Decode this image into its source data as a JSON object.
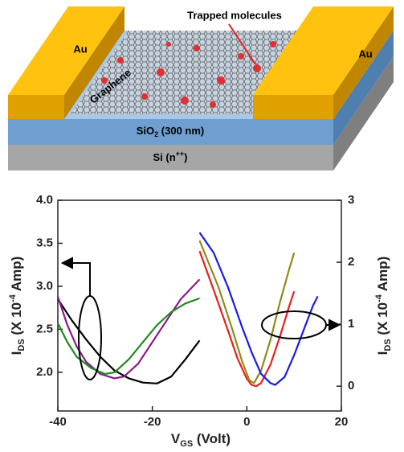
{
  "schematic": {
    "electrode_left": "Au",
    "electrode_right": "Au",
    "molecules": "Trapped molecules",
    "graphene": "Graphene",
    "oxide": [
      "SiO",
      "2",
      " (300 nm)"
    ],
    "substrate": [
      "Si (n",
      "++",
      ")"
    ]
  },
  "chart_data": {
    "type": "line",
    "x_label": [
      "V",
      "GS",
      " (Volt)"
    ],
    "y_label": [
      "I",
      "DS",
      " (X 10",
      "-4",
      " Amp)"
    ],
    "y2_label": [
      "I",
      "DS",
      " (X 10",
      "-4",
      " Amp)"
    ],
    "xlim": [
      -40,
      20
    ],
    "xticks": [
      -40,
      -20,
      0,
      20
    ],
    "ylim": [
      1.55,
      4.0
    ],
    "yticks": [
      {
        "value": 2,
        "label": "2.0"
      },
      2.5,
      {
        "value": 3,
        "label": "3.0"
      },
      3.5,
      {
        "value": 4,
        "label": "4.0"
      }
    ],
    "y2lim": [
      -0.4,
      3.0
    ],
    "y2ticks": [
      0,
      1,
      2,
      3
    ],
    "series": [
      {
        "color": "#000000",
        "axis": "y",
        "x": [
          -40,
          -37,
          -34,
          -31,
          -28,
          -25,
          -22,
          -19,
          -16,
          -13,
          -10
        ],
        "values": [
          2.85,
          2.6,
          2.38,
          2.18,
          2.02,
          1.93,
          1.88,
          1.87,
          1.95,
          2.15,
          2.37
        ]
      },
      {
        "color": "#8b1a8b",
        "axis": "y",
        "x": [
          -40,
          -38,
          -36,
          -34,
          -31,
          -28,
          -26,
          -23,
          -20,
          -17,
          -14,
          -10
        ],
        "values": [
          2.88,
          2.55,
          2.3,
          2.12,
          1.98,
          1.93,
          1.95,
          2.1,
          2.35,
          2.6,
          2.85,
          3.08
        ]
      },
      {
        "color": "#1e8c1e",
        "axis": "y",
        "x": [
          -40,
          -38,
          -36,
          -33,
          -30,
          -28,
          -25,
          -22,
          -19,
          -16,
          -13,
          -10
        ],
        "values": [
          2.57,
          2.35,
          2.18,
          2.05,
          1.98,
          2.0,
          2.15,
          2.35,
          2.55,
          2.7,
          2.8,
          2.86
        ]
      },
      {
        "color": "#e8201c",
        "axis": "y2",
        "x": [
          -10,
          -7,
          -4,
          -2,
          0,
          1,
          2,
          3,
          5,
          7,
          9,
          10
        ],
        "values": [
          2.18,
          1.55,
          0.9,
          0.45,
          0.12,
          0.02,
          0.0,
          0.05,
          0.35,
          0.8,
          1.3,
          1.53
        ]
      },
      {
        "color": "#8c8c1a",
        "axis": "y2",
        "x": [
          -10,
          -6,
          -3,
          -1,
          0.5,
          1.5,
          3,
          5,
          7,
          9,
          10
        ],
        "values": [
          2.35,
          1.6,
          0.9,
          0.4,
          0.1,
          0.05,
          0.25,
          0.75,
          1.35,
          1.9,
          2.15
        ]
      },
      {
        "color": "#1a1aee",
        "axis": "y2",
        "x": [
          -10,
          -7,
          -4,
          -1,
          1,
          3,
          5,
          6,
          8,
          10,
          12,
          14,
          15
        ],
        "values": [
          2.48,
          2.15,
          1.6,
          0.95,
          0.55,
          0.2,
          0.05,
          0.02,
          0.15,
          0.5,
          0.9,
          1.3,
          1.45
        ]
      }
    ]
  }
}
